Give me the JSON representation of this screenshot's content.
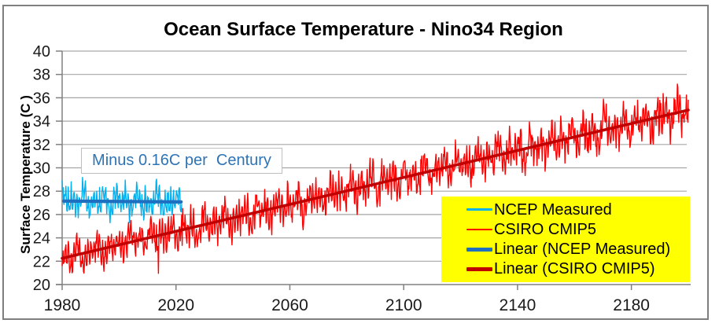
{
  "chart_data": {
    "type": "line",
    "title": "Ocean Surface Temperature - Nino34 Region",
    "xlabel": "",
    "ylabel": "Surface Temperature (C )",
    "x_axis": {
      "range": [
        1980,
        2200
      ],
      "ticks": [
        1980,
        2020,
        2060,
        2100,
        2140,
        2180
      ]
    },
    "y_axis": {
      "range": [
        20,
        40
      ],
      "ticks": [
        20,
        22,
        24,
        26,
        28,
        30,
        32,
        34,
        36,
        38,
        40
      ]
    },
    "grid": "horizontal-only",
    "grid_color": "#a6a6a6",
    "axis_color": "#808080",
    "tick_label_color": "#1a1a1a",
    "annotation": {
      "text": "Minus 0.16C per  Century",
      "color": "#2e74b5",
      "box_fill": "#ffffff",
      "box_border": "#bfbfbf"
    },
    "series": [
      {
        "name": "NCEP Measured",
        "kind": "noisy",
        "color": "#00b0f0",
        "line_width": 1.4,
        "x_start": 1980,
        "x_end": 2022,
        "points_per_year": 6,
        "mean_start": 27.15,
        "mean_end": 27.08,
        "seasonal_amp": 0.8,
        "interannual_amp": 0.85,
        "noise_amp": 0.55,
        "min_observed": 25.3,
        "max_observed": 29.6,
        "seed": 1234
      },
      {
        "name": "CSIRO CMIP5",
        "kind": "noisy",
        "color": "#ff0000",
        "line_width": 1.4,
        "x_start": 1980,
        "x_end": 2200,
        "points_per_year": 6,
        "mean_start": 22.25,
        "mean_end": 34.95,
        "seasonal_amp": 0.78,
        "interannual_amp": 0.9,
        "noise_amp": 0.62,
        "amp_growth": 0.28,
        "dip_chance": 0.004,
        "dip_depth": 1.6,
        "min_observed": 20.9,
        "max_observed": 37.9,
        "seed": 777
      },
      {
        "name": "Linear (NCEP Measured)",
        "kind": "straight",
        "color": "#1f6fc0",
        "line_width": 4.2,
        "points": [
          [
            1980.6,
            27.15
          ],
          [
            2021.8,
            27.08
          ]
        ],
        "slope_per_century": -0.16
      },
      {
        "name": "Linear (CSIRO CMIP5)",
        "kind": "straight",
        "color": "#c00000",
        "line_width": 3.6,
        "points": [
          [
            1980,
            22.25
          ],
          [
            2200,
            34.95
          ]
        ],
        "slope_per_century": 5.8
      }
    ],
    "legend": {
      "position": "bottom-right-inside",
      "background": "#ffff00",
      "items": [
        {
          "label": "NCEP Measured",
          "color": "#00b0f0",
          "thickness": 2.5
        },
        {
          "label": "CSIRO CMIP5",
          "color": "#ff0000",
          "thickness": 2.5
        },
        {
          "label": "Linear (NCEP Measured)",
          "color": "#1f6fc0",
          "thickness": 5
        },
        {
          "label": "Linear (CSIRO CMIP5)",
          "color": "#c00000",
          "thickness": 4.5
        }
      ]
    }
  }
}
